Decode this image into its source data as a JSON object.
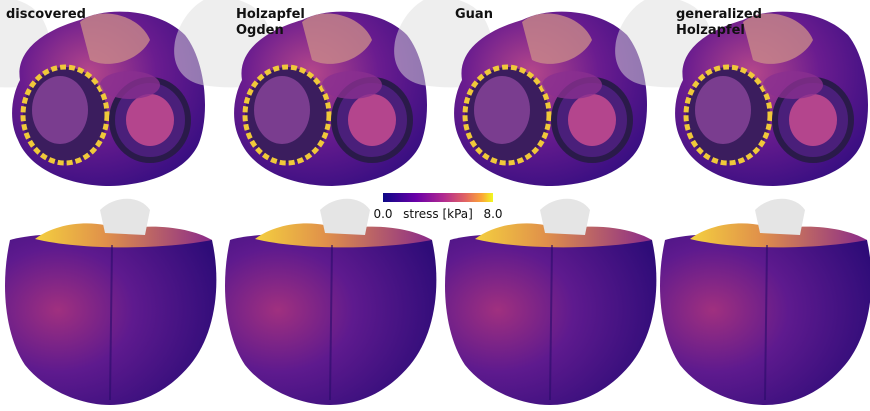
{
  "panels": [
    {
      "title": [
        "discovered"
      ]
    },
    {
      "title": [
        "Holzapfel",
        "Ogden"
      ]
    },
    {
      "title": [
        "Guan"
      ]
    },
    {
      "title": [
        "generalized",
        "Holzapfel"
      ]
    }
  ],
  "colorbar": {
    "label": "stress [kPa]",
    "min": "0.0",
    "max": "8.0"
  }
}
